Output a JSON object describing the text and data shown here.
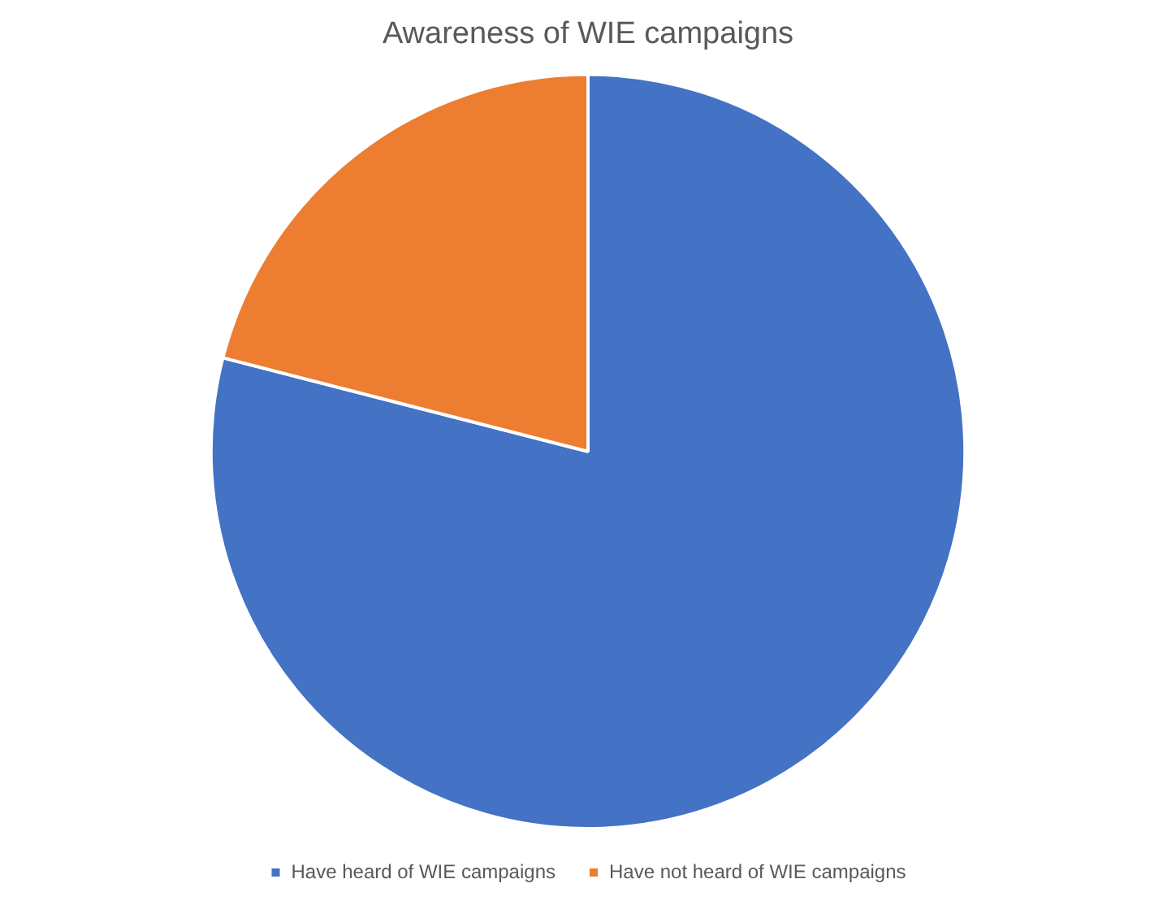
{
  "chart_data": {
    "type": "pie",
    "title": "Awareness of WIE campaigns",
    "categories": [
      "Have heard of WIE campaigns",
      "Have not heard of WIE campaigns"
    ],
    "values": [
      79,
      21
    ],
    "colors": [
      "#4472c4",
      "#ed7d31"
    ],
    "legend": "bottom"
  }
}
